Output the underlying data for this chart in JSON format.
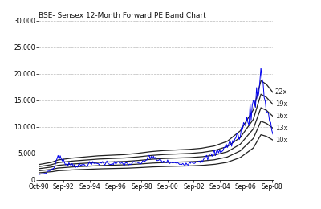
{
  "title": "BSE- Sensex 12-Month Forward PE Band Chart",
  "x_labels": [
    "Oct-90",
    "Sep-92",
    "Sep-94",
    "Sep-96",
    "Sep-98",
    "Sep-00",
    "Sep-02",
    "Sep-04",
    "Sep-06",
    "Sep-08"
  ],
  "pe_bands": [
    10,
    13,
    16,
    19,
    22
  ],
  "band_labels": [
    "10x",
    "13x",
    "16x",
    "19x",
    "22x"
  ],
  "ylim": [
    0,
    30000
  ],
  "yticks": [
    0,
    5000,
    10000,
    15000,
    20000,
    25000,
    30000
  ],
  "background_color": "#ffffff",
  "band_color": "#222222",
  "price_color": "#0000ee",
  "title_fontsize": 6.5,
  "tick_fontsize": 5.5,
  "label_fontsize": 6,
  "n_months": 217,
  "tick_positions": [
    0,
    23,
    47,
    71,
    95,
    119,
    143,
    167,
    191,
    215
  ],
  "eps_key_months": [
    0,
    12,
    18,
    30,
    42,
    54,
    66,
    78,
    90,
    102,
    114,
    126,
    138,
    150,
    162,
    174,
    186,
    198,
    205,
    210,
    216
  ],
  "eps_key_values": [
    130,
    150,
    170,
    185,
    195,
    205,
    210,
    215,
    225,
    240,
    250,
    255,
    260,
    270,
    290,
    330,
    420,
    600,
    850,
    820,
    750
  ],
  "price_key_months": [
    0,
    6,
    14,
    18,
    24,
    36,
    48,
    60,
    72,
    84,
    90,
    96,
    102,
    108,
    114,
    120,
    126,
    132,
    138,
    144,
    150,
    156,
    162,
    168,
    174,
    180,
    186,
    192,
    198,
    202,
    205,
    208,
    212,
    216
  ],
  "price_key_values": [
    1000,
    1200,
    2200,
    4500,
    3200,
    2600,
    3000,
    3200,
    3100,
    3000,
    3200,
    3100,
    4500,
    3800,
    3500,
    3300,
    3100,
    3000,
    3200,
    3400,
    3700,
    4200,
    5000,
    5500,
    6500,
    7200,
    9000,
    11000,
    14000,
    17000,
    20000,
    16000,
    12000,
    9000
  ],
  "noise_seed": 7,
  "noise_scale": 0.07
}
